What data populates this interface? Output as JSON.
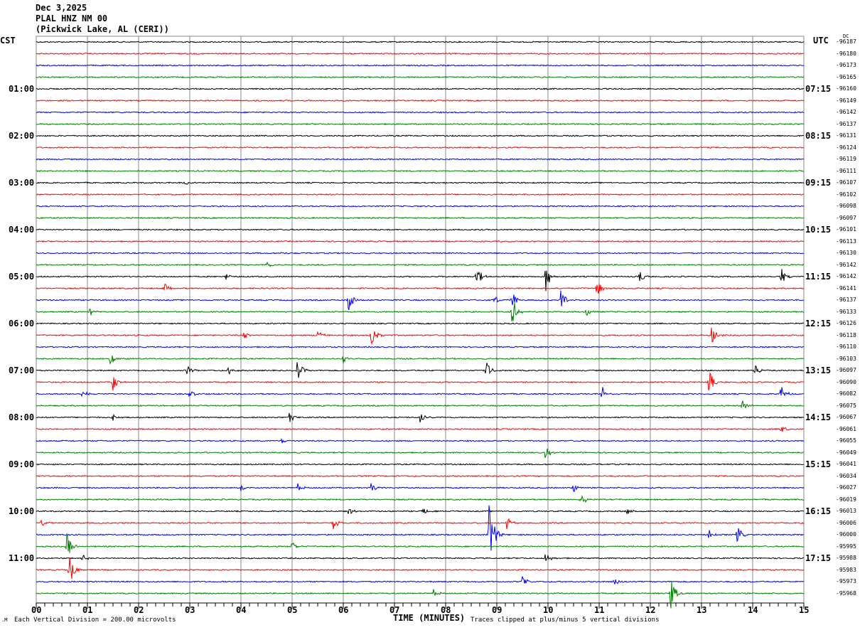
{
  "header": {
    "date": "Dec 3,2025",
    "station": "PLAL HNZ NM 00",
    "location": "(Pickwick Lake, AL (CERI))"
  },
  "chart_data": {
    "type": "line",
    "title": "PLAL HNZ NM 00",
    "left_axis_label": "CST",
    "right_axis_label": "UTC",
    "dc_label": "DC",
    "xlabel": "TIME (MINUTES)",
    "xlim": [
      0,
      15
    ],
    "x_ticks": [
      "00",
      "01",
      "02",
      "03",
      "04",
      "05",
      "06",
      "07",
      "08",
      "09",
      "10",
      "11",
      "12",
      "13",
      "14",
      "15"
    ],
    "left_time_labels": [
      {
        "row": 4,
        "text": "01:00"
      },
      {
        "row": 8,
        "text": "02:00"
      },
      {
        "row": 12,
        "text": "03:00"
      },
      {
        "row": 16,
        "text": "04:00"
      },
      {
        "row": 20,
        "text": "05:00"
      },
      {
        "row": 24,
        "text": "06:00"
      },
      {
        "row": 28,
        "text": "07:00"
      },
      {
        "row": 32,
        "text": "08:00"
      },
      {
        "row": 36,
        "text": "09:00"
      },
      {
        "row": 40,
        "text": "10:00"
      },
      {
        "row": 44,
        "text": "11:00"
      }
    ],
    "right_time_labels": [
      {
        "row": 4,
        "text": "07:15"
      },
      {
        "row": 8,
        "text": "08:15"
      },
      {
        "row": 12,
        "text": "09:15"
      },
      {
        "row": 16,
        "text": "10:15"
      },
      {
        "row": 20,
        "text": "11:15"
      },
      {
        "row": 24,
        "text": "12:15"
      },
      {
        "row": 28,
        "text": "13:15"
      },
      {
        "row": 32,
        "text": "14:15"
      },
      {
        "row": 36,
        "text": "15:15"
      },
      {
        "row": 40,
        "text": "16:15"
      },
      {
        "row": 44,
        "text": "17:15"
      }
    ],
    "dc_values": [
      "-96187",
      "-96180",
      "-96173",
      "-96165",
      "-96160",
      "-96149",
      "-96142",
      "-96137",
      "-96131",
      "-96124",
      "-96119",
      "-96111",
      "-96107",
      "-96102",
      "-96098",
      "-96097",
      "-96101",
      "-96113",
      "-96130",
      "-96142",
      "-96142",
      "-96141",
      "-96137",
      "-96133",
      "-96126",
      "-96118",
      "-96110",
      "-96103",
      "-96097",
      "-96090",
      "-96082",
      "-96075",
      "-96067",
      "-96061",
      "-96055",
      "-96049",
      "-96041",
      "-96034",
      "-96027",
      "-96019",
      "-96013",
      "-96006",
      "-96000",
      "-95995",
      "-95988",
      "-95983",
      "-95973",
      "-95968"
    ],
    "trace_colors": [
      "#000000",
      "#ff0000",
      "#0000ff",
      "#008000"
    ],
    "events": [
      {
        "row": 12,
        "minute": 2.9,
        "amp": 0.4
      },
      {
        "row": 18,
        "minute": 4.8,
        "amp": 0.2
      },
      {
        "row": 19,
        "minute": 4.5,
        "amp": 0.5
      },
      {
        "row": 20,
        "minute": 3.7,
        "amp": 0.4
      },
      {
        "row": 20,
        "minute": 8.6,
        "amp": 1.4
      },
      {
        "row": 20,
        "minute": 9.95,
        "amp": 2
      },
      {
        "row": 20,
        "minute": 11.8,
        "amp": 0.7
      },
      {
        "row": 20,
        "minute": 14.55,
        "amp": 1
      },
      {
        "row": 21,
        "minute": 2.5,
        "amp": 0.6
      },
      {
        "row": 21,
        "minute": 10.95,
        "amp": 1.2
      },
      {
        "row": 22,
        "minute": 6.1,
        "amp": 1.4
      },
      {
        "row": 22,
        "minute": 8.95,
        "amp": 0.6
      },
      {
        "row": 22,
        "minute": 9.3,
        "amp": 0.9
      },
      {
        "row": 22,
        "minute": 10.25,
        "amp": 1.3
      },
      {
        "row": 23,
        "minute": 1.05,
        "amp": 0.5
      },
      {
        "row": 23,
        "minute": 9.3,
        "amp": 1.8
      },
      {
        "row": 23,
        "minute": 10.75,
        "amp": 0.5
      },
      {
        "row": 25,
        "minute": 4.05,
        "amp": 0.5
      },
      {
        "row": 25,
        "minute": 5.5,
        "amp": 0.7
      },
      {
        "row": 25,
        "minute": 6.55,
        "amp": 1.4
      },
      {
        "row": 25,
        "minute": 13.2,
        "amp": 1.5
      },
      {
        "row": 27,
        "minute": 1.45,
        "amp": 0.7
      },
      {
        "row": 27,
        "minute": 6.0,
        "amp": 0.5
      },
      {
        "row": 28,
        "minute": 2.95,
        "amp": 0.5
      },
      {
        "row": 28,
        "minute": 3.75,
        "amp": 0.7
      },
      {
        "row": 28,
        "minute": 5.1,
        "amp": 1.4
      },
      {
        "row": 28,
        "minute": 8.8,
        "amp": 1
      },
      {
        "row": 28,
        "minute": 14.05,
        "amp": 0.7
      },
      {
        "row": 29,
        "minute": 1.5,
        "amp": 1
      },
      {
        "row": 29,
        "minute": 13.15,
        "amp": 1.4
      },
      {
        "row": 30,
        "minute": 0.9,
        "amp": 0.4
      },
      {
        "row": 30,
        "minute": 3.0,
        "amp": 0.5
      },
      {
        "row": 30,
        "minute": 11.05,
        "amp": 1
      },
      {
        "row": 30,
        "minute": 14.55,
        "amp": 1
      },
      {
        "row": 31,
        "minute": 13.8,
        "amp": 0.7
      },
      {
        "row": 32,
        "minute": 1.5,
        "amp": 0.5
      },
      {
        "row": 32,
        "minute": 4.95,
        "amp": 0.6
      },
      {
        "row": 32,
        "minute": 7.5,
        "amp": 0.8
      },
      {
        "row": 33,
        "minute": 14.55,
        "amp": 0.5
      },
      {
        "row": 34,
        "minute": 4.8,
        "amp": 0.3
      },
      {
        "row": 35,
        "minute": 9.95,
        "amp": 0.8
      },
      {
        "row": 38,
        "minute": 4.0,
        "amp": 0.4
      },
      {
        "row": 38,
        "minute": 5.1,
        "amp": 0.5
      },
      {
        "row": 38,
        "minute": 6.55,
        "amp": 0.6
      },
      {
        "row": 38,
        "minute": 10.5,
        "amp": 0.5
      },
      {
        "row": 39,
        "minute": 10.65,
        "amp": 0.8
      },
      {
        "row": 40,
        "minute": 6.1,
        "amp": 0.4
      },
      {
        "row": 40,
        "minute": 7.55,
        "amp": 0.5
      },
      {
        "row": 40,
        "minute": 11.55,
        "amp": 0.4
      },
      {
        "row": 41,
        "minute": 0.1,
        "amp": 0.4
      },
      {
        "row": 41,
        "minute": 5.8,
        "amp": 0.8
      },
      {
        "row": 41,
        "minute": 9.2,
        "amp": 0.8
      },
      {
        "row": 42,
        "minute": 8.85,
        "amp": 5
      },
      {
        "row": 42,
        "minute": 13.15,
        "amp": 0.6
      },
      {
        "row": 42,
        "minute": 13.7,
        "amp": 1
      },
      {
        "row": 43,
        "minute": 0.6,
        "amp": 1.6
      },
      {
        "row": 43,
        "minute": 5.0,
        "amp": 0.6
      },
      {
        "row": 44,
        "minute": 0.9,
        "amp": 0.6
      },
      {
        "row": 44,
        "minute": 9.95,
        "amp": 0.7
      },
      {
        "row": 45,
        "minute": 0.65,
        "amp": 2
      },
      {
        "row": 46,
        "minute": 9.5,
        "amp": 0.6
      },
      {
        "row": 46,
        "minute": 11.3,
        "amp": 0.6
      },
      {
        "row": 47,
        "minute": 7.75,
        "amp": 0.5
      },
      {
        "row": 47,
        "minute": 12.4,
        "amp": 1.8
      }
    ]
  },
  "footer": {
    "scale": "Each Vertical Division =  200.00 microvolts",
    "clip_note": "Traces clipped at plus/minus 5 vertical divisions"
  }
}
